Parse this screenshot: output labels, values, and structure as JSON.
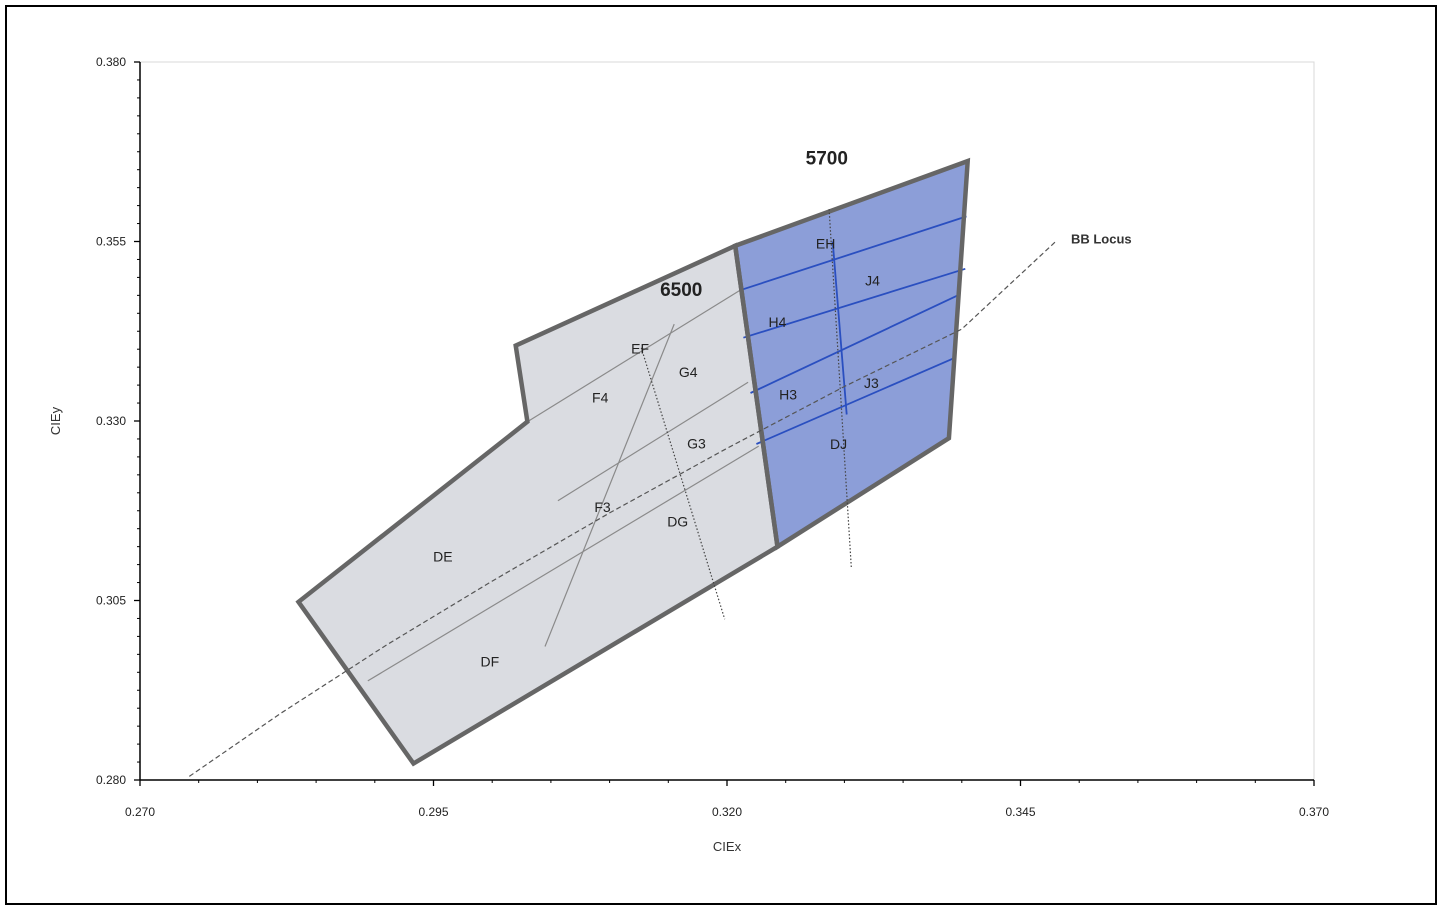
{
  "chart_data": {
    "type": "scatter",
    "xlabel": "CIEx",
    "ylabel": "CIEy",
    "xlim": [
      0.27,
      0.37
    ],
    "ylim": [
      0.28,
      0.38
    ],
    "x_ticks": [
      0.27,
      0.295,
      0.32,
      0.345,
      0.37
    ],
    "y_ticks": [
      0.28,
      0.305,
      0.33,
      0.355,
      0.38
    ],
    "x_tick_labels": [
      "0.270",
      "0.295",
      "0.320",
      "0.345",
      "0.370"
    ],
    "y_tick_labels": [
      "0.280",
      "0.305",
      "0.330",
      "0.355",
      "0.380"
    ],
    "grid": false,
    "colors": {
      "gray_fill": "#dadce1",
      "blue_fill": "#8c9ed8",
      "outline": "#666666",
      "blue_line": "#2a4fc0",
      "gray_line": "#8a8a8a",
      "locus": "#555555"
    },
    "regions": [
      {
        "name": "6500",
        "fill": "gray",
        "outline": [
          [
            0.2835,
            0.3048
          ],
          [
            0.2933,
            0.2823
          ],
          [
            0.3243,
            0.3125
          ],
          [
            0.3207,
            0.3544
          ],
          [
            0.302,
            0.3405
          ],
          [
            0.303,
            0.3299
          ]
        ]
      },
      {
        "name": "5700",
        "fill": "blue",
        "outline": [
          [
            0.3207,
            0.3544
          ],
          [
            0.3243,
            0.3125
          ],
          [
            0.3389,
            0.3276
          ],
          [
            0.3405,
            0.3662
          ]
        ]
      }
    ],
    "dividers": [
      {
        "color": "gray",
        "points": [
          [
            0.2894,
            0.2938
          ],
          [
            0.3227,
            0.3265
          ]
        ]
      },
      {
        "color": "gray",
        "points": [
          [
            0.3056,
            0.3189
          ],
          [
            0.3218,
            0.3354
          ]
        ]
      },
      {
        "color": "gray",
        "points": [
          [
            0.303,
            0.3299
          ],
          [
            0.3213,
            0.3484
          ]
        ]
      },
      {
        "color": "gray",
        "points": [
          [
            0.3045,
            0.2986
          ],
          [
            0.3155,
            0.3435
          ]
        ]
      },
      {
        "color": "blue",
        "points": [
          [
            0.3225,
            0.3268
          ],
          [
            0.3394,
            0.3388
          ]
        ]
      },
      {
        "color": "blue",
        "points": [
          [
            0.322,
            0.3339
          ],
          [
            0.3398,
            0.3476
          ]
        ]
      },
      {
        "color": "blue",
        "points": [
          [
            0.3214,
            0.3416
          ],
          [
            0.3403,
            0.3512
          ]
        ]
      },
      {
        "color": "blue",
        "points": [
          [
            0.3211,
            0.3482
          ],
          [
            0.3404,
            0.3585
          ]
        ]
      },
      {
        "color": "blue",
        "points": [
          [
            0.329,
            0.355
          ],
          [
            0.3302,
            0.3309
          ]
        ]
      }
    ],
    "cct_lines": [
      {
        "label": "6500",
        "label_at": [
          0.3161,
          0.3474
        ],
        "points": [
          [
            0.3127,
            0.3402
          ],
          [
            0.3198,
            0.3024
          ]
        ]
      },
      {
        "label": "5700",
        "label_at": [
          0.3285,
          0.3657
        ],
        "points": [
          [
            0.3287,
            0.3595
          ],
          [
            0.3306,
            0.3094
          ]
        ]
      }
    ],
    "bb_locus": {
      "label": "BB Locus",
      "label_at": [
        0.3493,
        0.3547
      ],
      "points": [
        [
          0.2742,
          0.2805
        ],
        [
          0.282,
          0.2893
        ],
        [
          0.291,
          0.2988
        ],
        [
          0.3,
          0.3077
        ],
        [
          0.31,
          0.3172
        ],
        [
          0.32,
          0.3262
        ],
        [
          0.33,
          0.3348
        ],
        [
          0.34,
          0.3428
        ],
        [
          0.348,
          0.355
        ]
      ]
    },
    "bins": [
      {
        "label": "DE",
        "x": 0.2958,
        "y": 0.3111
      },
      {
        "label": "DF",
        "x": 0.2998,
        "y": 0.2965
      },
      {
        "label": "F4",
        "x": 0.3092,
        "y": 0.3333
      },
      {
        "label": "F3",
        "x": 0.3094,
        "y": 0.318
      },
      {
        "label": "EF",
        "x": 0.3126,
        "y": 0.3401
      },
      {
        "label": "G4",
        "x": 0.3167,
        "y": 0.3368
      },
      {
        "label": "G3",
        "x": 0.3174,
        "y": 0.3269
      },
      {
        "label": "DG",
        "x": 0.3158,
        "y": 0.316
      },
      {
        "label": "EH",
        "x": 0.3284,
        "y": 0.3547
      },
      {
        "label": "J4",
        "x": 0.3324,
        "y": 0.3496
      },
      {
        "label": "H4",
        "x": 0.3243,
        "y": 0.3438
      },
      {
        "label": "J3",
        "x": 0.3323,
        "y": 0.3353
      },
      {
        "label": "H3",
        "x": 0.3252,
        "y": 0.3337
      },
      {
        "label": "DJ",
        "x": 0.3295,
        "y": 0.3268
      }
    ]
  }
}
